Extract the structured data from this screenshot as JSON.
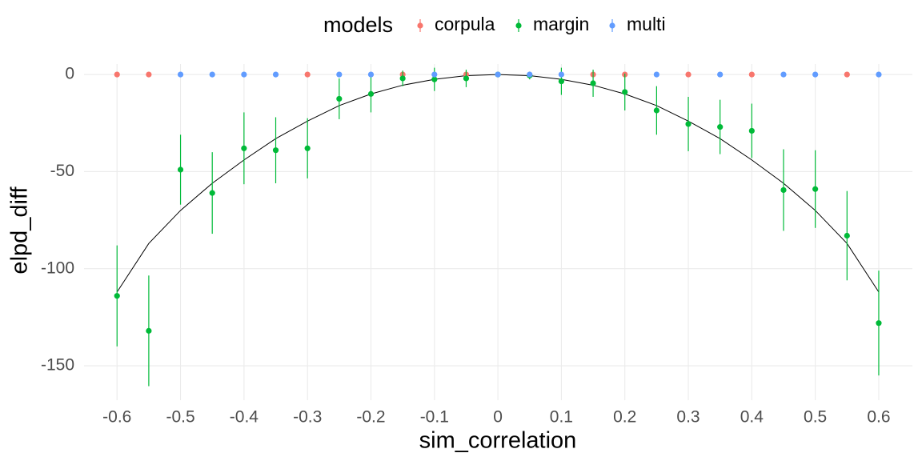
{
  "chart_data": {
    "type": "scatter",
    "x_label": "sim_correlation",
    "y_label": "elpd_diff",
    "legend_title": "models",
    "legend_position": "top",
    "grid": true,
    "xlim": [
      -0.652,
      0.653
    ],
    "ylim": [
      -167.7,
      5.4
    ],
    "xticks": [
      -0.6,
      -0.5,
      -0.4,
      -0.3,
      -0.2,
      -0.1,
      0,
      0.1,
      0.2,
      0.3,
      0.4,
      0.5,
      0.6
    ],
    "yticks": [
      0,
      -50,
      -100,
      -150
    ],
    "x": [
      -0.6,
      -0.55,
      -0.5,
      -0.45,
      -0.4,
      -0.35,
      -0.3,
      -0.25,
      -0.2,
      -0.15,
      -0.1,
      -0.05,
      0,
      0.05,
      0.1,
      0.15,
      0.2,
      0.25,
      0.3,
      0.35,
      0.4,
      0.45,
      0.5,
      0.55,
      0.6
    ],
    "series": [
      {
        "name": "corpula",
        "color": "#F8766D",
        "values": [
          0,
          0,
          null,
          null,
          null,
          null,
          0,
          null,
          null,
          0,
          null,
          0,
          null,
          null,
          null,
          0,
          0,
          null,
          0,
          null,
          0,
          null,
          null,
          0,
          null
        ]
      },
      {
        "name": "margin",
        "color": "#00BA38",
        "values": [
          -114,
          -132,
          -49,
          -61,
          -38,
          -39,
          -38,
          -12.5,
          -10,
          -2,
          -2.5,
          -2,
          0,
          -0.5,
          -3.5,
          -4.5,
          -9,
          -18.5,
          -25.5,
          -27,
          -29,
          -59.5,
          -59,
          -83,
          -128
        ],
        "errors": [
          26,
          28.5,
          18,
          21,
          18.5,
          17,
          15.5,
          10.5,
          9.5,
          4,
          6,
          4.5,
          0,
          2,
          7,
          7,
          9.5,
          12.5,
          14,
          14,
          14,
          21,
          20,
          23,
          27
        ]
      },
      {
        "name": "multi",
        "color": "#619CFF",
        "values": [
          null,
          null,
          0,
          0,
          0,
          0,
          null,
          0,
          0,
          null,
          0,
          null,
          0,
          0,
          0,
          null,
          null,
          0,
          null,
          0,
          null,
          0,
          0,
          null,
          0
        ]
      }
    ],
    "curve": {
      "color": "#000000",
      "values": [
        -112,
        -87,
        -70,
        -56,
        -44,
        -33,
        -24,
        -16,
        -10,
        -5.5,
        -2.5,
        -0.6,
        0,
        -0.6,
        -2.5,
        -5.5,
        -10,
        -16,
        -24,
        -33,
        -44,
        -56,
        -70,
        -87,
        -112
      ]
    }
  }
}
